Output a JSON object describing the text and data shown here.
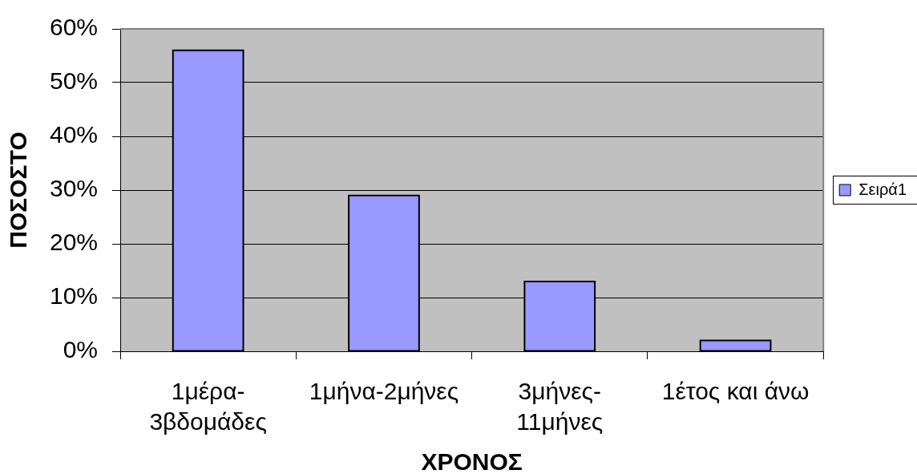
{
  "chart_data": {
    "type": "bar",
    "xlabel": "ΧΡΟΝΟΣ",
    "ylabel": "ΠΟΣΟΣΤΟ",
    "categories": [
      "1μέρα-3βδομάδες",
      "1μήνα-2μήνες",
      "3μήνες-11μήνες",
      "1έτος και άνω"
    ],
    "series": [
      {
        "name": "Σειρά1",
        "color": "#9999ff",
        "values": [
          56,
          29,
          13,
          2
        ]
      }
    ],
    "ylim": [
      0,
      60
    ],
    "yticks": [
      {
        "value": 0,
        "label": "0%"
      },
      {
        "value": 10,
        "label": "10%"
      },
      {
        "value": 20,
        "label": "20%"
      },
      {
        "value": 30,
        "label": "30%"
      },
      {
        "value": 40,
        "label": "40%"
      },
      {
        "value": 50,
        "label": "50%"
      },
      {
        "value": 60,
        "label": "60%"
      }
    ],
    "grid": "y",
    "legend": "right"
  }
}
